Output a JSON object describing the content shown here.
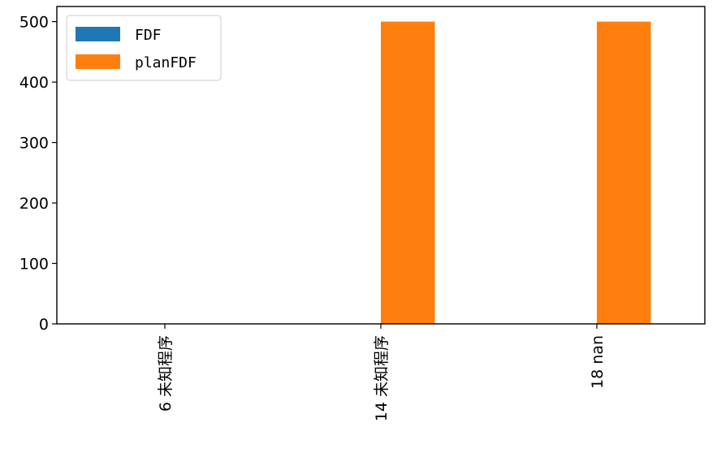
{
  "chart_data": {
    "type": "bar",
    "categories": [
      "6 未知程序",
      "14 未知程序",
      "18 nan"
    ],
    "series": [
      {
        "name": "FDF",
        "values": [
          0,
          0,
          0
        ],
        "color": "#1f77b4"
      },
      {
        "name": "planFDF",
        "values": [
          0,
          500,
          500
        ],
        "color": "#ff7f0e"
      }
    ],
    "title": "",
    "xlabel": "",
    "ylabel": "",
    "ylim": [
      0,
      525
    ],
    "yticks": [
      0,
      100,
      200,
      300,
      400,
      500
    ],
    "grid": false,
    "legend_position": "upper-left"
  }
}
